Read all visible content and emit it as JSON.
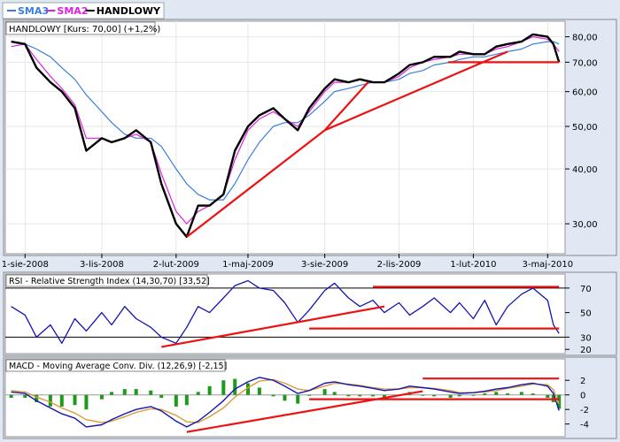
{
  "legend": [
    {
      "name": "SMA3",
      "color": "#3a7de0"
    },
    {
      "name": "SMA2",
      "color": "#e020e0"
    },
    {
      "name": "HANDLOWY",
      "color": "#000000"
    }
  ],
  "price_panel": {
    "label": "HANDLOWY [Kurs: 70,00] (+1,2%)",
    "y_ticks": [
      "80,00",
      "70,00",
      "60,00",
      "50,00",
      "40,00",
      "30,00"
    ],
    "x_ticks": [
      "1-sie-2008",
      "3-lis-2008",
      "2-lut-2009",
      "1-maj-2009",
      "3-sie-2009",
      "2-lis-2009",
      "1-lut-2010",
      "3-maj-2010"
    ]
  },
  "rsi_panel": {
    "label": "RSI - Relative Strength Index (14,30,70) [33,52]",
    "y_ticks": [
      "70",
      "50",
      "30",
      "20"
    ]
  },
  "macd_panel": {
    "label": "MACD - Moving Average Conv. Div. (12,26,9) [-2,15]",
    "y_ticks": [
      "2",
      "0",
      "-2",
      "-4"
    ]
  },
  "chart_data": [
    {
      "type": "line",
      "scale": "log",
      "ylim": [
        26,
        86
      ],
      "x": [
        "2008-07-15",
        "2008-08-01",
        "2008-08-15",
        "2008-09-01",
        "2008-09-15",
        "2008-10-01",
        "2008-10-15",
        "2008-11-03",
        "2008-11-15",
        "2008-12-01",
        "2008-12-15",
        "2009-01-02",
        "2009-01-15",
        "2009-02-02",
        "2009-02-15",
        "2009-03-01",
        "2009-03-15",
        "2009-04-01",
        "2009-04-15",
        "2009-05-01",
        "2009-05-15",
        "2009-06-01",
        "2009-06-15",
        "2009-07-01",
        "2009-07-15",
        "2009-08-03",
        "2009-08-15",
        "2009-09-01",
        "2009-09-15",
        "2009-10-01",
        "2009-10-15",
        "2009-11-02",
        "2009-11-15",
        "2009-12-01",
        "2009-12-15",
        "2010-01-04",
        "2010-01-15",
        "2010-02-01",
        "2010-02-15",
        "2010-03-01",
        "2010-03-15",
        "2010-04-01",
        "2010-04-15",
        "2010-05-03",
        "2010-05-10",
        "2010-05-17"
      ],
      "series": [
        {
          "name": "HANDLOWY",
          "color": "#000000",
          "values": [
            78,
            77,
            68,
            63,
            60,
            55,
            44,
            47,
            46,
            47,
            49,
            46,
            37,
            30,
            28,
            33,
            33,
            35,
            44,
            50,
            53,
            55,
            52,
            49,
            55,
            61,
            64,
            63,
            64,
            63,
            63,
            66,
            69,
            70,
            72,
            72,
            74,
            73,
            73,
            76,
            77,
            78,
            81,
            80,
            77,
            70
          ]
        },
        {
          "name": "SMA2",
          "color": "#e020e0",
          "values": [
            76,
            77,
            71,
            65,
            61,
            56,
            47,
            47,
            46,
            47,
            48,
            46,
            39,
            32,
            30,
            32,
            33,
            35,
            42,
            49,
            52,
            54,
            52,
            50,
            54,
            60,
            63,
            63,
            64,
            63,
            63,
            65,
            68,
            70,
            71,
            72,
            73,
            73,
            73,
            75,
            76,
            78,
            80,
            79,
            77,
            74
          ]
        },
        {
          "name": "SMA3",
          "color": "#3a7de0",
          "values": [
            78,
            77,
            75,
            72,
            68,
            64,
            59,
            54,
            51,
            48,
            47,
            47,
            45,
            40,
            37,
            35,
            34,
            34,
            37,
            42,
            46,
            50,
            51,
            51,
            53,
            57,
            60,
            61,
            62,
            63,
            63,
            64,
            66,
            67,
            69,
            70,
            71,
            72,
            72,
            73,
            74,
            75,
            77,
            78,
            78,
            77
          ]
        }
      ],
      "trend_lines": [
        {
          "x": [
            "2009-02-15",
            "2009-08-03"
          ],
          "y": [
            28,
            49
          ]
        },
        {
          "x": [
            "2009-08-03",
            "2010-03-15"
          ],
          "y": [
            49,
            74
          ]
        },
        {
          "x": [
            "2009-08-03",
            "2009-09-25"
          ],
          "y": [
            49,
            63
          ]
        },
        {
          "x": [
            "2010-01-01",
            "2010-05-17"
          ],
          "y": [
            70,
            70
          ]
        }
      ]
    },
    {
      "type": "line",
      "ylim": [
        18,
        80
      ],
      "reference_lines": [
        70,
        30
      ],
      "x": [
        "2008-07-15",
        "2008-08-01",
        "2008-08-15",
        "2008-09-01",
        "2008-09-15",
        "2008-10-01",
        "2008-10-15",
        "2008-11-03",
        "2008-11-15",
        "2008-12-01",
        "2008-12-15",
        "2009-01-02",
        "2009-01-15",
        "2009-02-02",
        "2009-02-15",
        "2009-03-01",
        "2009-03-15",
        "2009-04-01",
        "2009-04-15",
        "2009-05-01",
        "2009-05-15",
        "2009-06-01",
        "2009-06-15",
        "2009-07-01",
        "2009-07-15",
        "2009-08-03",
        "2009-08-15",
        "2009-09-01",
        "2009-09-15",
        "2009-10-01",
        "2009-10-15",
        "2009-11-02",
        "2009-11-15",
        "2009-12-01",
        "2009-12-15",
        "2010-01-04",
        "2010-01-15",
        "2010-02-01",
        "2010-02-15",
        "2010-03-01",
        "2010-03-15",
        "2010-04-01",
        "2010-04-15",
        "2010-05-03",
        "2010-05-10",
        "2010-05-17"
      ],
      "series": [
        {
          "name": "RSI",
          "color": "#1414b4",
          "values": [
            55,
            48,
            30,
            40,
            25,
            45,
            35,
            50,
            40,
            55,
            45,
            38,
            30,
            25,
            38,
            55,
            50,
            62,
            72,
            76,
            70,
            68,
            58,
            42,
            52,
            68,
            74,
            62,
            55,
            60,
            50,
            58,
            48,
            55,
            62,
            50,
            58,
            45,
            60,
            40,
            55,
            65,
            70,
            60,
            40,
            33
          ]
        }
      ],
      "trend_lines": [
        {
          "x": [
            "2009-01-15",
            "2009-10-15"
          ],
          "y": [
            22,
            55
          ]
        },
        {
          "x": [
            "2009-07-15",
            "2010-05-17"
          ],
          "y": [
            37,
            37
          ]
        },
        {
          "x": [
            "2009-10-01",
            "2010-05-17"
          ],
          "y": [
            71,
            71
          ]
        }
      ]
    },
    {
      "type": "line",
      "ylim": [
        -5.5,
        3
      ],
      "x": [
        "2008-07-15",
        "2008-08-01",
        "2008-08-15",
        "2008-09-01",
        "2008-09-15",
        "2008-10-01",
        "2008-10-15",
        "2008-11-03",
        "2008-11-15",
        "2008-12-01",
        "2008-12-15",
        "2009-01-02",
        "2009-01-15",
        "2009-02-02",
        "2009-02-15",
        "2009-03-01",
        "2009-03-15",
        "2009-04-01",
        "2009-04-15",
        "2009-05-01",
        "2009-05-15",
        "2009-06-01",
        "2009-06-15",
        "2009-07-01",
        "2009-07-15",
        "2009-08-03",
        "2009-08-15",
        "2009-09-01",
        "2009-09-15",
        "2009-10-01",
        "2009-10-15",
        "2009-11-02",
        "2009-11-15",
        "2009-12-01",
        "2009-12-15",
        "2010-01-04",
        "2010-01-15",
        "2010-02-01",
        "2010-02-15",
        "2010-03-01",
        "2010-03-15",
        "2010-04-01",
        "2010-04-15",
        "2010-05-03",
        "2010-05-10",
        "2010-05-17"
      ],
      "series": [
        {
          "name": "MACD",
          "color": "#1414b4",
          "values": [
            0.4,
            0.2,
            -0.8,
            -1.8,
            -2.6,
            -3.2,
            -4.4,
            -4.1,
            -3.4,
            -2.6,
            -2.0,
            -1.6,
            -2.2,
            -3.6,
            -4.4,
            -3.6,
            -2.4,
            -0.8,
            0.8,
            1.8,
            2.4,
            2.0,
            1.2,
            0.2,
            0.6,
            1.6,
            1.8,
            1.4,
            1.2,
            0.9,
            0.6,
            0.8,
            1.2,
            1.0,
            0.8,
            0.4,
            0.2,
            0.3,
            0.5,
            0.8,
            1.0,
            1.4,
            1.6,
            1.2,
            0.2,
            -2.15
          ]
        },
        {
          "name": "Signal",
          "color": "#d89c3a",
          "values": [
            0.6,
            0.4,
            -0.3,
            -1.0,
            -1.8,
            -2.5,
            -3.4,
            -3.8,
            -3.6,
            -3.0,
            -2.4,
            -1.9,
            -2.0,
            -2.8,
            -3.7,
            -3.8,
            -3.0,
            -1.8,
            -0.3,
            1.0,
            1.9,
            2.1,
            1.6,
            0.8,
            0.6,
            1.2,
            1.6,
            1.5,
            1.3,
            1.0,
            0.8,
            0.8,
            1.0,
            1.0,
            0.9,
            0.6,
            0.3,
            0.3,
            0.4,
            0.6,
            0.9,
            1.2,
            1.5,
            1.4,
            0.7,
            -1.2
          ]
        }
      ],
      "trend_lines": [
        {
          "x": [
            "2009-02-15",
            "2009-12-01"
          ],
          "y": [
            -5.1,
            0.5
          ]
        },
        {
          "x": [
            "2009-07-15",
            "2010-05-17"
          ],
          "y": [
            -0.6,
            -0.6
          ]
        },
        {
          "x": [
            "2009-12-01",
            "2010-05-17"
          ],
          "y": [
            2.25,
            2.25
          ]
        }
      ]
    }
  ]
}
